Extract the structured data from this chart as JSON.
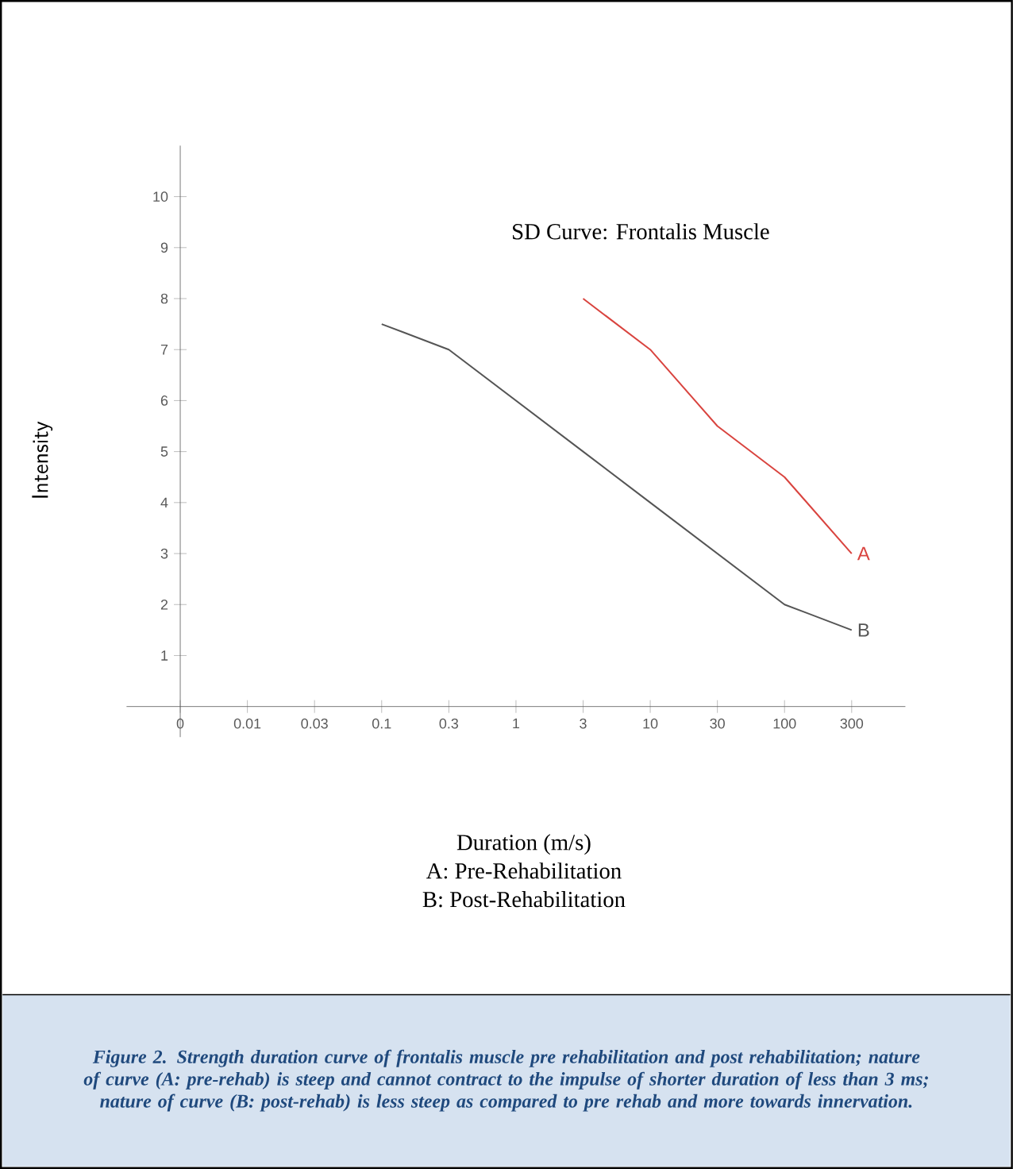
{
  "chart_data": {
    "type": "line",
    "title": "SD Curve: Frontalis Muscle",
    "xlabel": "Duration (m/s)",
    "ylabel": "Intensity",
    "categories": [
      "0",
      "0.01",
      "0.03",
      "0.1",
      "0.3",
      "1",
      "3",
      "10",
      "30",
      "100",
      "300"
    ],
    "series": [
      {
        "name": "A",
        "color": "#d9443f",
        "values": [
          null,
          null,
          null,
          null,
          null,
          null,
          8,
          7,
          5.5,
          4.5,
          3
        ]
      },
      {
        "name": "B",
        "color": "#555555",
        "values": [
          null,
          null,
          null,
          7.5,
          7,
          6,
          5,
          4,
          3,
          2,
          1.5
        ]
      }
    ],
    "ylim": [
      -0.6,
      11
    ],
    "yticks": [
      1,
      2,
      3,
      4,
      5,
      6,
      7,
      8,
      9,
      10
    ],
    "marker": "none",
    "line_style": "solid",
    "annotations": [
      "A: Pre-Rehabilitation",
      "B: Post-Rehabilitation",
      "Figure 2. Strength duration curve of frontalis muscle pre rehabilitation and post rehabilitation; nature of curve (A: pre-rehab) is steep and cannot contract to the impulse of shorter duration of less than 3 ms; nature of curve (B: post-rehab) is less steep as compared to pre rehab and more towards innervation."
    ]
  }
}
